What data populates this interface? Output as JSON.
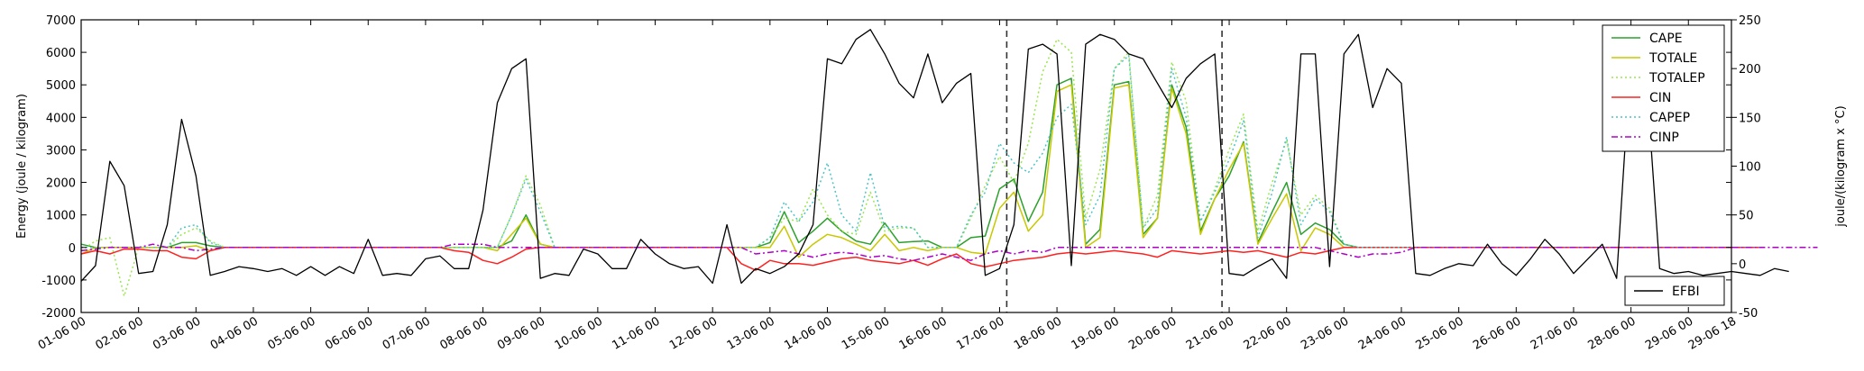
{
  "chart_data": {
    "type": "line",
    "ylabel": "Energy (joule / kilogram)",
    "y2label": "joule/(kilogram x °C)",
    "ylim": [
      -2000,
      7000
    ],
    "y2lim": [
      -50,
      250
    ],
    "yticks": [
      -2000,
      -1000,
      0,
      1000,
      2000,
      3000,
      4000,
      5000,
      6000,
      7000
    ],
    "y2ticks": [
      -50,
      0,
      50,
      100,
      150,
      200,
      250
    ],
    "x_tick_labels": [
      "01-06 00",
      "02-06 00",
      "03-06 00",
      "04-06 00",
      "05-06 00",
      "06-06 00",
      "07-06 00",
      "08-06 00",
      "09-06 00",
      "10-06 00",
      "11-06 00",
      "12-06 00",
      "13-06 00",
      "14-06 00",
      "15-06 00",
      "16-06 00",
      "17-06 00",
      "18-06 00",
      "19-06 00",
      "20-06 00",
      "21-06 00",
      "22-06 00",
      "23-06 00",
      "24-06 00",
      "25-06 00",
      "26-06 00",
      "27-06 00",
      "28-06 00",
      "29-06 00",
      "29-06 18"
    ],
    "x_tick_positions": [
      0,
      4,
      8,
      12,
      16,
      20,
      24,
      28,
      32,
      36,
      40,
      44,
      48,
      52,
      56,
      60,
      64,
      68,
      72,
      76,
      80,
      84,
      88,
      92,
      96,
      100,
      104,
      108,
      112,
      115
    ],
    "x_range": [
      0,
      115
    ],
    "vertical_lines_x": [
      64.5,
      79.5
    ],
    "legend_main": {
      "placement": "upper right",
      "entries": [
        "CAPE",
        "TOTALE",
        "TOTALEP",
        "CIN",
        "CAPEP",
        "CINP"
      ]
    },
    "legend_secondary": {
      "placement": "lower right",
      "entries": [
        "EFBI"
      ]
    },
    "series": [
      {
        "name": "CAPE",
        "axis": "left",
        "color": "#2ca02c",
        "style": "solid",
        "values": [
          100,
          0,
          0,
          0,
          0,
          0,
          0,
          150,
          150,
          50,
          0,
          0,
          0,
          0,
          0,
          0,
          0,
          0,
          0,
          0,
          0,
          0,
          0,
          0,
          0,
          0,
          0,
          0,
          0,
          0,
          200,
          1000,
          100,
          0,
          0,
          0,
          0,
          0,
          0,
          0,
          0,
          0,
          0,
          0,
          0,
          0,
          0,
          0,
          150,
          1100,
          150,
          500,
          900,
          500,
          200,
          100,
          750,
          150,
          180,
          200,
          0,
          0,
          300,
          350,
          1800,
          2100,
          800,
          1700,
          5000,
          5200,
          100,
          550,
          5000,
          5100,
          400,
          900,
          5000,
          3700,
          500,
          1500,
          2200,
          3250,
          150,
          1100,
          2000,
          400,
          750,
          550,
          100,
          0,
          0,
          0,
          0,
          0,
          0,
          0,
          0,
          0,
          0,
          0,
          0,
          0,
          0,
          0,
          0,
          0,
          0,
          0,
          0,
          0,
          0,
          0,
          0,
          0,
          0,
          0,
          0,
          0
        ]
      },
      {
        "name": "TOTALE",
        "axis": "left",
        "color": "#c8c800",
        "style": "solid",
        "values": [
          -200,
          0,
          0,
          0,
          0,
          0,
          0,
          0,
          50,
          -100,
          0,
          0,
          0,
          0,
          0,
          0,
          0,
          0,
          0,
          0,
          0,
          0,
          0,
          0,
          0,
          0,
          0,
          0,
          0,
          -100,
          400,
          900,
          100,
          0,
          0,
          0,
          0,
          0,
          0,
          0,
          0,
          0,
          0,
          0,
          0,
          0,
          0,
          0,
          0,
          650,
          -300,
          100,
          400,
          300,
          100,
          -100,
          400,
          -100,
          0,
          -100,
          0,
          0,
          -150,
          -200,
          1200,
          1700,
          500,
          1000,
          4800,
          5000,
          0,
          300,
          4900,
          5000,
          300,
          900,
          4900,
          3500,
          400,
          1500,
          2400,
          3200,
          100,
          900,
          1650,
          -100,
          600,
          400,
          0,
          0,
          0,
          0,
          0,
          0,
          0,
          0,
          0,
          0,
          0,
          0,
          0,
          0,
          0,
          0,
          0,
          0,
          0,
          0,
          0,
          0,
          0,
          0,
          0,
          0,
          0,
          0,
          0,
          0
        ]
      },
      {
        "name": "TOTALEP",
        "axis": "left",
        "color": "#99e64d",
        "style": "dotted",
        "values": [
          -100,
          200,
          300,
          -1500,
          0,
          0,
          0,
          400,
          600,
          200,
          0,
          0,
          0,
          0,
          0,
          0,
          0,
          0,
          0,
          0,
          0,
          0,
          0,
          0,
          0,
          0,
          0,
          0,
          0,
          0,
          1000,
          2200,
          1300,
          0,
          0,
          0,
          0,
          0,
          0,
          0,
          0,
          0,
          0,
          0,
          0,
          0,
          0,
          0,
          300,
          900,
          800,
          1800,
          1000,
          500,
          400,
          1700,
          500,
          600,
          600,
          0,
          0,
          0,
          900,
          1900,
          2800,
          2000,
          3200,
          5400,
          6400,
          6000,
          900,
          2400,
          5500,
          6000,
          600,
          1600,
          5700,
          4500,
          800,
          1800,
          3000,
          4100,
          500,
          2000,
          3300,
          1000,
          1600,
          1200,
          100,
          0,
          0,
          0,
          0,
          0,
          0,
          0,
          0,
          0,
          0,
          0,
          0,
          0,
          0,
          0,
          0,
          0,
          0,
          0,
          0,
          0,
          0,
          0,
          0,
          0,
          0,
          0,
          0,
          0
        ]
      },
      {
        "name": "CIN",
        "axis": "left",
        "color": "#ff2020",
        "style": "solid",
        "values": [
          -200,
          -100,
          -200,
          -50,
          -50,
          -100,
          -100,
          -300,
          -350,
          -100,
          0,
          0,
          0,
          0,
          0,
          0,
          0,
          0,
          0,
          0,
          0,
          0,
          0,
          0,
          0,
          0,
          -100,
          -150,
          -400,
          -500,
          -300,
          -50,
          0,
          0,
          0,
          0,
          0,
          0,
          0,
          0,
          0,
          0,
          0,
          0,
          0,
          0,
          -500,
          -700,
          -400,
          -500,
          -500,
          -550,
          -450,
          -350,
          -300,
          -400,
          -450,
          -500,
          -400,
          -550,
          -350,
          -200,
          -500,
          -600,
          -500,
          -400,
          -350,
          -300,
          -200,
          -150,
          -200,
          -150,
          -100,
          -150,
          -200,
          -300,
          -100,
          -150,
          -200,
          -150,
          -100,
          -150,
          -100,
          -200,
          -300,
          -150,
          -200,
          -100,
          0,
          0,
          0,
          0,
          0,
          0,
          0,
          0,
          0,
          0,
          0,
          0,
          0,
          0,
          0,
          0,
          0,
          0,
          0,
          0,
          0,
          0,
          0,
          0,
          0,
          0,
          0,
          0,
          0,
          0
        ]
      },
      {
        "name": "CAPEP",
        "axis": "left",
        "color": "#4dc4c4",
        "style": "dotted",
        "values": [
          0,
          0,
          0,
          0,
          0,
          0,
          0,
          600,
          700,
          150,
          0,
          0,
          0,
          0,
          0,
          0,
          0,
          0,
          0,
          0,
          0,
          0,
          0,
          0,
          0,
          0,
          0,
          0,
          0,
          0,
          1000,
          2100,
          1100,
          0,
          0,
          0,
          0,
          0,
          0,
          0,
          0,
          0,
          0,
          0,
          0,
          0,
          0,
          0,
          300,
          1400,
          800,
          1400,
          2600,
          1000,
          500,
          2300,
          600,
          650,
          600,
          0,
          0,
          0,
          1000,
          1700,
          3200,
          2600,
          2300,
          2900,
          4000,
          4400,
          700,
          1600,
          5500,
          5900,
          600,
          1200,
          5500,
          4000,
          800,
          1700,
          2700,
          3900,
          300,
          1700,
          3400,
          700,
          1500,
          1100,
          100,
          0,
          0,
          0,
          0,
          0,
          0,
          0,
          0,
          0,
          0,
          0,
          0,
          0,
          0,
          0,
          0,
          0,
          0,
          0,
          0,
          0,
          0,
          0,
          0,
          0,
          0,
          0,
          0,
          0
        ]
      },
      {
        "name": "CINP",
        "axis": "left",
        "color": "#b000c8",
        "style": "dashdot",
        "values": [
          -100,
          -50,
          0,
          0,
          0,
          100,
          0,
          0,
          -100,
          -50,
          0,
          0,
          0,
          0,
          0,
          0,
          0,
          0,
          0,
          0,
          0,
          0,
          0,
          0,
          0,
          0,
          100,
          100,
          100,
          0,
          0,
          0,
          0,
          0,
          0,
          0,
          0,
          0,
          0,
          0,
          0,
          0,
          0,
          0,
          0,
          0,
          0,
          -200,
          -150,
          -100,
          -200,
          -300,
          -200,
          -150,
          -200,
          -300,
          -250,
          -350,
          -400,
          -300,
          -200,
          -300,
          -400,
          -200,
          -100,
          -200,
          -100,
          -150,
          0,
          0,
          0,
          0,
          0,
          0,
          0,
          0,
          0,
          0,
          0,
          0,
          0,
          0,
          0,
          0,
          0,
          0,
          0,
          -100,
          -200,
          -300,
          -200,
          -200,
          -150,
          0,
          0,
          0,
          0,
          0,
          0,
          0,
          0,
          0,
          0,
          0,
          0,
          0,
          0,
          0,
          0,
          0,
          0,
          0,
          0,
          0,
          0,
          0,
          0,
          0,
          0,
          0,
          0,
          0
        ]
      },
      {
        "name": "EFBI",
        "axis": "right",
        "color": "#000000",
        "style": "solid",
        "values": [
          -18,
          -2,
          105,
          80,
          -10,
          -8,
          40,
          148,
          90,
          -12,
          -8,
          -3,
          -5,
          -8,
          -5,
          -12,
          -3,
          -12,
          -3,
          -10,
          25,
          -12,
          -10,
          -12,
          5,
          8,
          -5,
          -5,
          55,
          165,
          200,
          210,
          -15,
          -10,
          -12,
          15,
          10,
          -5,
          -5,
          25,
          10,
          0,
          -5,
          -3,
          -20,
          40,
          -20,
          -5,
          -10,
          -3,
          10,
          40,
          210,
          205,
          230,
          240,
          215,
          185,
          170,
          215,
          165,
          185,
          195,
          -12,
          -5,
          40,
          220,
          225,
          215,
          -2,
          225,
          235,
          230,
          215,
          210,
          185,
          160,
          190,
          205,
          215,
          -10,
          -12,
          -3,
          5,
          -15,
          215,
          215,
          -3,
          215,
          235,
          160,
          200,
          185,
          -10,
          -12,
          -5,
          0,
          -2,
          20,
          0,
          -12,
          5,
          25,
          10,
          -10,
          5,
          20,
          -15,
          215,
          205,
          -5,
          -10,
          -8,
          -12,
          -10,
          -8,
          -10,
          -12,
          -5,
          -8
        ]
      }
    ]
  }
}
